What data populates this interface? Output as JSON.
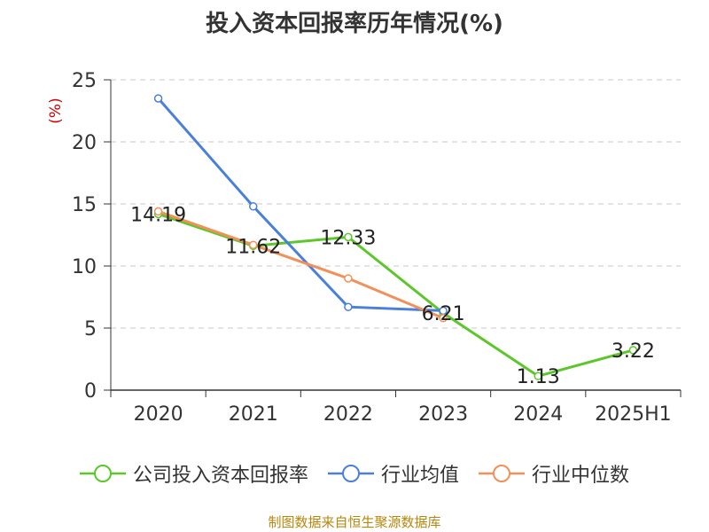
{
  "chart_data": {
    "type": "line",
    "title": "投入资本回报率历年情况(%)",
    "ylabel": "(%)",
    "xlabel": "",
    "categories": [
      "2020",
      "2021",
      "2022",
      "2023",
      "2024",
      "2025H1"
    ],
    "ylim": [
      0,
      25
    ],
    "yticks": [
      0,
      5,
      10,
      15,
      20,
      25
    ],
    "grid": "horizontal-dashed",
    "legend_position": "bottom",
    "series": [
      {
        "name": "公司投入资本回报率",
        "color": "#5cc72a",
        "values": [
          14.19,
          11.62,
          12.33,
          6.21,
          1.13,
          3.22
        ],
        "labels": [
          "14.19",
          "11.62",
          "12.33",
          "6.21",
          "1.13",
          "3.22"
        ]
      },
      {
        "name": "行业均值",
        "color": "#4a7fdb",
        "values": [
          23.5,
          14.8,
          6.7,
          6.4,
          null,
          null
        ]
      },
      {
        "name": "行业中位数",
        "color": "#f2905a",
        "values": [
          14.4,
          11.7,
          9.0,
          5.8,
          null,
          null
        ]
      }
    ]
  },
  "source_note": "制图数据来自恒生聚源数据库"
}
